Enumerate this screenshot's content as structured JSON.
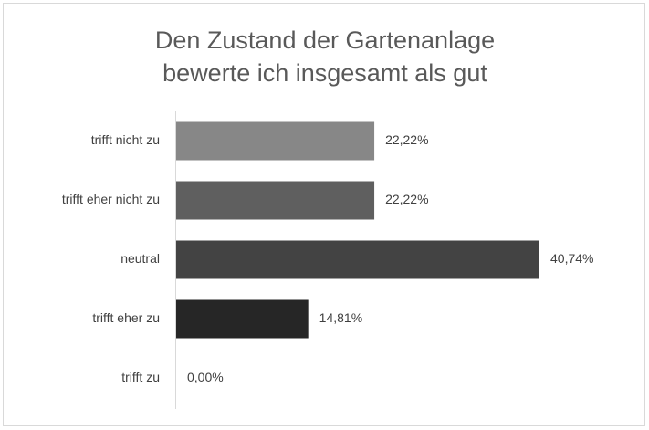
{
  "chart_data": {
    "type": "bar",
    "orientation": "horizontal",
    "title": [
      "Den Zustand der Gartenanlage",
      "bewerte ich insgesamt als gut"
    ],
    "categories": [
      "trifft nicht zu",
      "trifft eher nicht zu",
      "neutral",
      "trifft eher zu",
      "trifft zu"
    ],
    "values": [
      22.22,
      22.22,
      40.74,
      14.81,
      0
    ],
    "value_labels": [
      "22,22%",
      "22,22%",
      "40,74%",
      "14,81%",
      "0,00%"
    ],
    "colors": [
      "#878787",
      "#5f5f5f",
      "#434343",
      "#262626",
      "#1a1a1a"
    ]
  }
}
